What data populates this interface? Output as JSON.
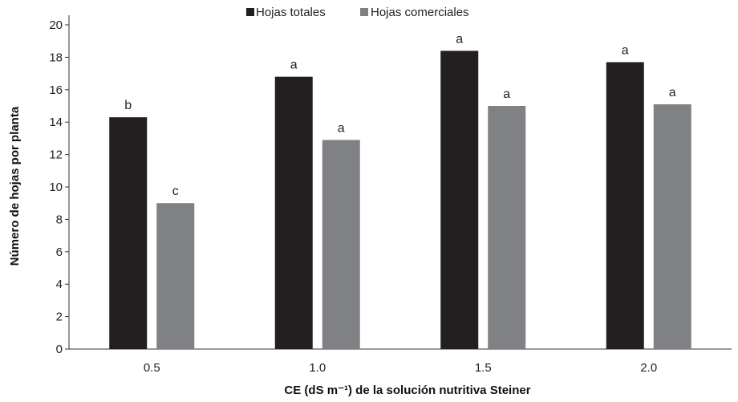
{
  "chart_data": {
    "type": "bar",
    "title": "",
    "xlabel": "CE (dS m⁻¹) de la solución nutritiva Steiner",
    "ylabel": "Número de hojas por planta",
    "ylim": [
      0,
      20
    ],
    "yticks": [
      "0",
      "2",
      "4",
      "6",
      "8",
      "10",
      "12",
      "14",
      "16",
      "18",
      "20"
    ],
    "categories": [
      "0.5",
      "1.0",
      "1.5",
      "2.0"
    ],
    "legend_position": "top-center",
    "grid": false,
    "series": [
      {
        "name": "Hojas totales",
        "color": "#231f20",
        "values": [
          14.3,
          16.8,
          18.4,
          17.7
        ],
        "labels": [
          "b",
          "a",
          "a",
          "a"
        ]
      },
      {
        "name": "Hojas comerciales",
        "color": "#808184",
        "values": [
          9.0,
          12.9,
          15.0,
          15.1
        ],
        "labels": [
          "c",
          "a",
          "a",
          "a"
        ]
      }
    ]
  }
}
